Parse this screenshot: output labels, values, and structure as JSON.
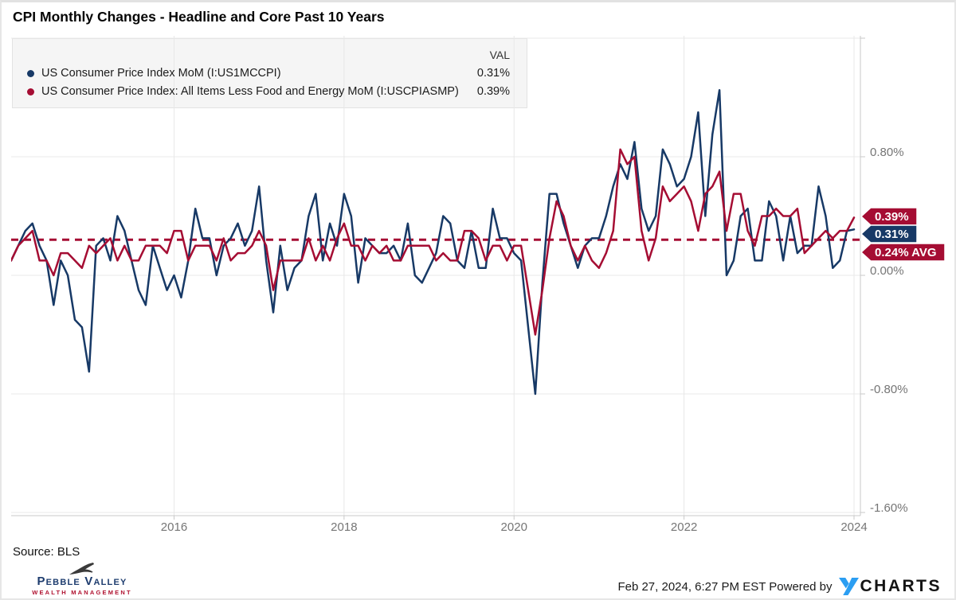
{
  "header": {
    "title": "CPI Monthly Changes - Headline and Core Past 10 Years"
  },
  "legend": {
    "val_header": "VAL",
    "series": [
      {
        "label": "US Consumer Price Index MoM (I:US1MCCPI)",
        "value": "0.31%"
      },
      {
        "label": "US Consumer Price Index: All Items Less Food and Energy MoM (I:USCPIASMP)",
        "value": "0.39%"
      }
    ]
  },
  "colors": {
    "navy": "#173966",
    "crimson": "#a50d33",
    "grid": "#e8e8e8",
    "axis": "#c9c9c9",
    "axis_label": "#757575",
    "flag_text": "#ffffff",
    "ycharts_blue": "#2b9ef2"
  },
  "chart_data": {
    "type": "line",
    "title": "CPI Monthly Changes - Headline and Core Past 10 Years",
    "x_start": "2014-02",
    "x_end": "2024-01",
    "x_interval": "monthly",
    "x_tick_labels": [
      "2016",
      "2018",
      "2020",
      "2022",
      "2024"
    ],
    "x_tick_month_indices": [
      23,
      47,
      71,
      95,
      119
    ],
    "y_tick_labels": [
      "0.80%",
      "0.00%",
      "-0.80%",
      "-1.60%"
    ],
    "y_tick_values": [
      0.8,
      0.0,
      -0.8,
      -1.6
    ],
    "y_gridline_values": [
      1.6,
      0.8,
      0.0,
      -0.8,
      -1.6
    ],
    "ylim": [
      -1.62,
      1.62
    ],
    "grid": true,
    "legend_position": "top-left",
    "average_line": {
      "value": 0.24,
      "label": "0.24% AVG",
      "style": "dashed"
    },
    "flags": [
      {
        "label": "0.39%",
        "color": "crimson",
        "y_center": 269,
        "body_width": 58
      },
      {
        "label": "0.31%",
        "color": "navy",
        "y_center": 291,
        "body_width": 58
      },
      {
        "label": "0.24% AVG",
        "color": "crimson",
        "y_center": 314,
        "body_width": 93
      }
    ],
    "series": [
      {
        "name": "US Consumer Price Index MoM (I:US1MCCPI)",
        "color_key": "navy",
        "last_value_label": "0.31%",
        "values": [
          0.1,
          0.2,
          0.3,
          0.35,
          0.2,
          0.1,
          -0.2,
          0.1,
          0.0,
          -0.3,
          -0.35,
          -0.65,
          0.2,
          0.25,
          0.1,
          0.4,
          0.3,
          0.1,
          -0.1,
          -0.2,
          0.2,
          0.05,
          -0.1,
          0.0,
          -0.15,
          0.1,
          0.45,
          0.25,
          0.25,
          0.0,
          0.2,
          0.25,
          0.35,
          0.2,
          0.3,
          0.6,
          0.1,
          -0.25,
          0.2,
          -0.1,
          0.05,
          0.1,
          0.4,
          0.55,
          0.1,
          0.35,
          0.2,
          0.55,
          0.4,
          -0.05,
          0.25,
          0.2,
          0.15,
          0.15,
          0.2,
          0.1,
          0.35,
          0.0,
          -0.05,
          0.05,
          0.15,
          0.4,
          0.35,
          0.1,
          0.05,
          0.3,
          0.05,
          0.05,
          0.45,
          0.25,
          0.25,
          0.15,
          0.1,
          -0.35,
          -0.8,
          -0.05,
          0.55,
          0.55,
          0.35,
          0.2,
          0.05,
          0.2,
          0.25,
          0.25,
          0.4,
          0.6,
          0.75,
          0.65,
          0.9,
          0.45,
          0.3,
          0.4,
          0.85,
          0.75,
          0.6,
          0.65,
          0.8,
          1.1,
          0.4,
          0.95,
          1.25,
          0.0,
          0.1,
          0.4,
          0.45,
          0.1,
          0.1,
          0.5,
          0.4,
          0.1,
          0.4,
          0.15,
          0.2,
          0.2,
          0.6,
          0.4,
          0.05,
          0.1,
          0.3,
          0.31
        ]
      },
      {
        "name": "US Consumer Price Index: All Items Less Food and Energy MoM (I:USCPIASMP)",
        "color_key": "crimson",
        "last_value_label": "0.39%",
        "values": [
          0.1,
          0.2,
          0.25,
          0.3,
          0.1,
          0.1,
          0.0,
          0.15,
          0.15,
          0.1,
          0.05,
          0.2,
          0.15,
          0.2,
          0.25,
          0.1,
          0.2,
          0.1,
          0.1,
          0.2,
          0.2,
          0.2,
          0.15,
          0.3,
          0.3,
          0.1,
          0.2,
          0.2,
          0.2,
          0.1,
          0.25,
          0.1,
          0.15,
          0.15,
          0.2,
          0.3,
          0.2,
          -0.1,
          0.1,
          0.1,
          0.1,
          0.1,
          0.25,
          0.1,
          0.2,
          0.1,
          0.25,
          0.35,
          0.2,
          0.2,
          0.1,
          0.2,
          0.15,
          0.2,
          0.1,
          0.1,
          0.2,
          0.2,
          0.2,
          0.2,
          0.1,
          0.15,
          0.1,
          0.1,
          0.3,
          0.3,
          0.25,
          0.1,
          0.2,
          0.2,
          0.1,
          0.2,
          0.2,
          -0.1,
          -0.4,
          -0.1,
          0.25,
          0.5,
          0.4,
          0.2,
          0.1,
          0.2,
          0.1,
          0.05,
          0.15,
          0.3,
          0.85,
          0.75,
          0.8,
          0.3,
          0.1,
          0.25,
          0.6,
          0.5,
          0.55,
          0.6,
          0.5,
          0.3,
          0.55,
          0.6,
          0.7,
          0.3,
          0.55,
          0.55,
          0.3,
          0.2,
          0.4,
          0.4,
          0.45,
          0.4,
          0.4,
          0.45,
          0.15,
          0.2,
          0.25,
          0.3,
          0.25,
          0.3,
          0.3,
          0.39
        ]
      }
    ]
  },
  "footer": {
    "source": "Source: BLS",
    "brand_line1": "Pebble Valley",
    "brand_line2": "WEALTH MANAGEMENT",
    "timestamp_powered": "Feb 27, 2024, 6:27 PM EST Powered by",
    "ycharts_text": "CHARTS"
  },
  "icons": {
    "brand_bird": "soaring-hawk-silhouette",
    "ycharts_mark": "ycharts-blue-y"
  }
}
